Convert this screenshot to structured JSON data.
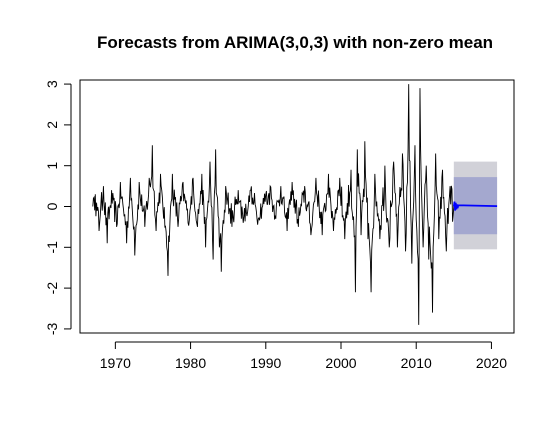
{
  "chart_data": {
    "type": "line",
    "title": "Forecasts from ARIMA(3,0,3) with non-zero mean",
    "xlabel": "",
    "ylabel": "",
    "xlim": [
      1965.3,
      2023.0
    ],
    "ylim": [
      -3.1,
      3.1
    ],
    "x_ticks": [
      1970,
      1980,
      1990,
      2000,
      2010,
      2020
    ],
    "y_ticks": [
      -3,
      -2,
      -1,
      0,
      1,
      2,
      3
    ],
    "grid": false,
    "legend": "none",
    "colors": {
      "observed": "#000000",
      "forecast": "#0000ff",
      "band95": "#d1d1d8",
      "band80": "#a4a8cf"
    },
    "observed": {
      "start": 1967.0,
      "frequency": 12,
      "anchors": [
        [
          1967.0,
          0.0
        ],
        [
          1967.3,
          0.3
        ],
        [
          1967.8,
          -0.6
        ],
        [
          1968.4,
          0.5
        ],
        [
          1968.9,
          -0.9
        ],
        [
          1969.5,
          0.4
        ],
        [
          1970.2,
          -0.5
        ],
        [
          1970.7,
          0.6
        ],
        [
          1971.5,
          -0.9
        ],
        [
          1972.0,
          0.7
        ],
        [
          1972.6,
          -1.2
        ],
        [
          1973.2,
          0.6
        ],
        [
          1973.9,
          -0.5
        ],
        [
          1974.5,
          0.7
        ],
        [
          1974.9,
          1.5
        ],
        [
          1975.4,
          -0.6
        ],
        [
          1976.0,
          0.8
        ],
        [
          1976.6,
          -0.5
        ],
        [
          1977.0,
          -1.7
        ],
        [
          1977.6,
          0.8
        ],
        [
          1978.3,
          -0.5
        ],
        [
          1979.0,
          0.6
        ],
        [
          1979.7,
          -0.4
        ],
        [
          1980.3,
          0.7
        ],
        [
          1980.9,
          -0.5
        ],
        [
          1981.5,
          0.8
        ],
        [
          1982.0,
          -1.0
        ],
        [
          1982.6,
          1.1
        ],
        [
          1983.0,
          -1.3
        ],
        [
          1983.3,
          1.4
        ],
        [
          1983.8,
          -1.0
        ],
        [
          1984.1,
          -1.6
        ],
        [
          1984.7,
          0.5
        ],
        [
          1985.5,
          -0.5
        ],
        [
          1986.3,
          0.4
        ],
        [
          1987.0,
          -0.4
        ],
        [
          1988.0,
          0.4
        ],
        [
          1989.0,
          -0.3
        ],
        [
          1990.0,
          0.3
        ],
        [
          1990.6,
          0.5
        ],
        [
          1991.3,
          -0.3
        ],
        [
          1992.0,
          0.5
        ],
        [
          1992.8,
          -0.6
        ],
        [
          1993.5,
          0.6
        ],
        [
          1994.3,
          -0.5
        ],
        [
          1995.2,
          0.5
        ],
        [
          1996.0,
          -0.7
        ],
        [
          1996.7,
          0.7
        ],
        [
          1997.5,
          -0.7
        ],
        [
          1998.3,
          0.8
        ],
        [
          1999.0,
          -0.6
        ],
        [
          1999.8,
          0.7
        ],
        [
          2000.5,
          -0.8
        ],
        [
          2001.3,
          0.9
        ],
        [
          2001.9,
          -2.1
        ],
        [
          2002.2,
          1.4
        ],
        [
          2002.7,
          -0.7
        ],
        [
          2003.2,
          1.6
        ],
        [
          2003.6,
          -0.8
        ],
        [
          2004.0,
          -2.1
        ],
        [
          2004.5,
          0.8
        ],
        [
          2005.2,
          -0.8
        ],
        [
          2005.8,
          1.0
        ],
        [
          2006.4,
          -1.0
        ],
        [
          2007.0,
          1.1
        ],
        [
          2007.5,
          -1.0
        ],
        [
          2008.2,
          1.3
        ],
        [
          2008.6,
          -1.1
        ],
        [
          2009.0,
          3.0
        ],
        [
          2009.4,
          -1.4
        ],
        [
          2009.8,
          1.5
        ],
        [
          2010.3,
          -2.9
        ],
        [
          2010.5,
          2.9
        ],
        [
          2010.9,
          -1.0
        ],
        [
          2011.3,
          1.0
        ],
        [
          2011.7,
          -1.3
        ],
        [
          2012.2,
          -2.6
        ],
        [
          2012.6,
          1.3
        ],
        [
          2013.0,
          -0.8
        ],
        [
          2013.5,
          0.9
        ],
        [
          2014.0,
          -1.1
        ],
        [
          2014.5,
          0.5
        ],
        [
          2014.9,
          -0.2
        ],
        [
          2015.0,
          0.0
        ]
      ]
    },
    "forecast": {
      "start": 2015.0,
      "end": 2020.75,
      "mean_level": 0.01,
      "initial_oscillation": [
        0.12,
        -0.1,
        0.09,
        -0.07,
        0.05,
        -0.04,
        0.03
      ],
      "pi80": [
        -0.68,
        0.72
      ],
      "pi95": [
        -1.05,
        1.1
      ]
    }
  }
}
